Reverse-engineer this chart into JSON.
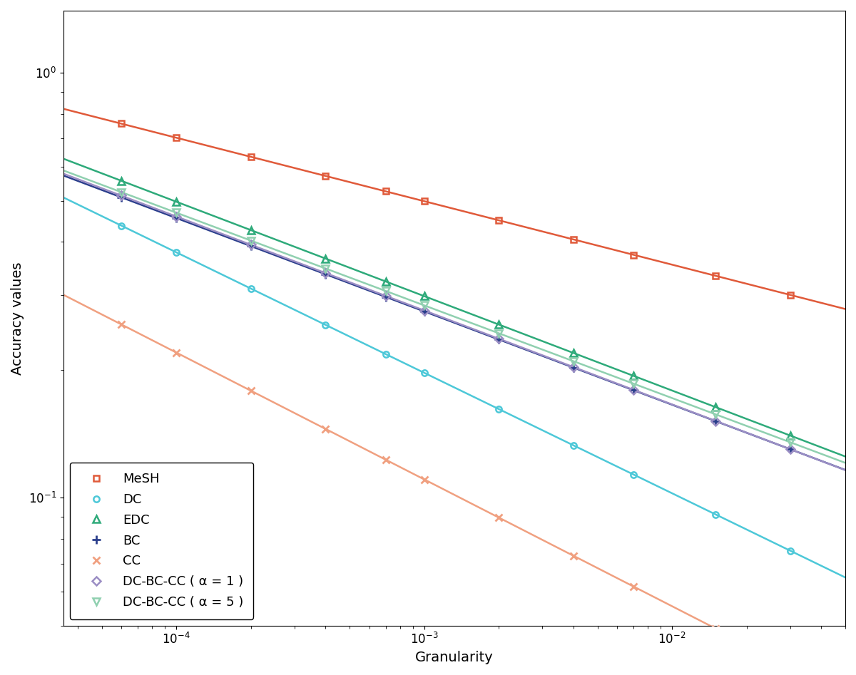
{
  "title": "",
  "xlabel": "Granularity",
  "ylabel": "Accuracy values",
  "series": [
    {
      "name": "MeSH",
      "color": "#E05A3A",
      "marker": "s",
      "markersize": 6,
      "linewidth": 1.8,
      "a": 0.155,
      "b": 0.22,
      "x_markers": [
        6e-05,
        0.0001,
        0.0002,
        0.0004,
        0.0007,
        0.001,
        0.002,
        0.004,
        0.007,
        0.015,
        0.03
      ]
    },
    {
      "name": "DC",
      "color": "#4DC8D8",
      "marker": "o",
      "markersize": 6,
      "linewidth": 1.8,
      "a": 0.082,
      "b": 0.3,
      "x_markers": [
        6e-05,
        0.0001,
        0.0002,
        0.0004,
        0.0007,
        0.001,
        0.002,
        0.004,
        0.007,
        0.015,
        0.03
      ]
    },
    {
      "name": "EDC",
      "color": "#2EAA7A",
      "marker": "^",
      "markersize": 7,
      "linewidth": 1.8,
      "a": 0.106,
      "b": 0.27,
      "x_markers": [
        6e-05,
        0.0001,
        0.0002,
        0.0004,
        0.0007,
        0.001,
        0.002,
        0.004,
        0.007,
        0.015,
        0.03
      ]
    },
    {
      "name": "BC",
      "color": "#2A3E8C",
      "marker": "+",
      "markersize": 8,
      "linewidth": 1.8,
      "a": 0.097,
      "b": 0.285,
      "x_markers": [
        6e-05,
        0.0001,
        0.0002,
        0.0004,
        0.0007,
        0.001,
        0.002,
        0.004,
        0.007,
        0.015,
        0.03
      ]
    },
    {
      "name": "CC",
      "color": "#F0A080",
      "marker": "x",
      "markersize": 7,
      "linewidth": 1.8,
      "a": 0.038,
      "b": 0.32,
      "x_markers": [
        6e-05,
        0.0001,
        0.0002,
        0.0004,
        0.0007,
        0.001,
        0.002,
        0.004,
        0.007,
        0.015,
        0.03
      ]
    },
    {
      "name": "DC-BC-CC ( α = 1 )",
      "color": "#9B8EC4",
      "marker": "D",
      "markersize": 6,
      "linewidth": 1.8,
      "a": 0.096,
      "b": 0.285,
      "x_markers": [
        6e-05,
        0.0001,
        0.0002,
        0.0004,
        0.0007,
        0.001,
        0.002,
        0.004,
        0.007,
        0.015,
        0.03
      ]
    },
    {
      "name": "DC-BC-CC ( α = 5 )",
      "color": "#90D0B0",
      "marker": "v",
      "markersize": 7,
      "linewidth": 1.8,
      "a": 0.098,
      "b": 0.283,
      "x_markers": [
        6e-05,
        0.0001,
        0.0002,
        0.0004,
        0.0007,
        0.001,
        0.002,
        0.004,
        0.007,
        0.015,
        0.03
      ]
    }
  ],
  "xlim": [
    3.5e-05,
    0.05
  ],
  "ylim": [
    0.05,
    1.4
  ],
  "legend_loc": "lower left",
  "legend_fontsize": 13,
  "tick_fontsize": 12,
  "label_fontsize": 14
}
